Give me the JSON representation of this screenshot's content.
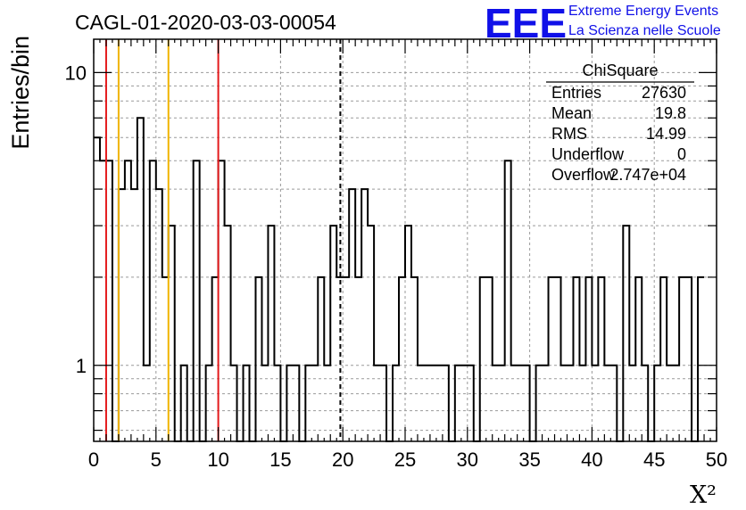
{
  "title": "CAGL-01-2020-03-03-00054",
  "logo": {
    "mark": "EEE",
    "line1": "Extreme Energy Events",
    "line2": "La Scienza nelle Scuole",
    "color": "#1010e8"
  },
  "stats": {
    "name": "ChiSquare",
    "rows": [
      {
        "label": "Entries",
        "value": "27630"
      },
      {
        "label": "Mean",
        "value": "19.8"
      },
      {
        "label": "RMS",
        "value": "14.99"
      },
      {
        "label": "Underflow",
        "value": "0"
      },
      {
        "label": "Overflow",
        "value": "2.747e+04"
      }
    ]
  },
  "chart_data": {
    "type": "histogram",
    "title": "CAGL-01-2020-03-03-00054",
    "xlabel": "X²",
    "ylabel": "Entries/bin",
    "xlim": [
      0,
      50
    ],
    "ylim": [
      0.55,
      13
    ],
    "yscale": "log",
    "grid": true,
    "bin_width": 0.5,
    "x_ticks": [
      "0",
      "5",
      "10",
      "15",
      "20",
      "25",
      "30",
      "35",
      "40",
      "45",
      "50"
    ],
    "y_ticks": [
      "1",
      "10"
    ],
    "counts": [
      6,
      5,
      5,
      0,
      4,
      5,
      4,
      7,
      1,
      5,
      4,
      2,
      3,
      0,
      1,
      0,
      5,
      0,
      1,
      2,
      5,
      3,
      1,
      0,
      1,
      0,
      2,
      1,
      3,
      1,
      0,
      1,
      1,
      0,
      1,
      1,
      2,
      1,
      3,
      2,
      2,
      4,
      2,
      4,
      3,
      1,
      1,
      0,
      1,
      2,
      3,
      2,
      1,
      1,
      1,
      1,
      1,
      0,
      1,
      1,
      1,
      0,
      2,
      2,
      1,
      1,
      5,
      1,
      1,
      1,
      0,
      1,
      1,
      2,
      2,
      1,
      1,
      2,
      1,
      2,
      1,
      2,
      1,
      1,
      0,
      3,
      1,
      2,
      1,
      0,
      1,
      2,
      1,
      1,
      2,
      2,
      0,
      2
    ],
    "lines": [
      {
        "x": 1,
        "color": "#e41a1c",
        "style": "solid"
      },
      {
        "x": 2,
        "color": "#f0b400",
        "style": "solid"
      },
      {
        "x": 6,
        "color": "#f0b400",
        "style": "solid"
      },
      {
        "x": 10,
        "color": "#e41a1c",
        "style": "solid"
      },
      {
        "x": 19.8,
        "color": "#000000",
        "style": "dashed"
      }
    ]
  }
}
